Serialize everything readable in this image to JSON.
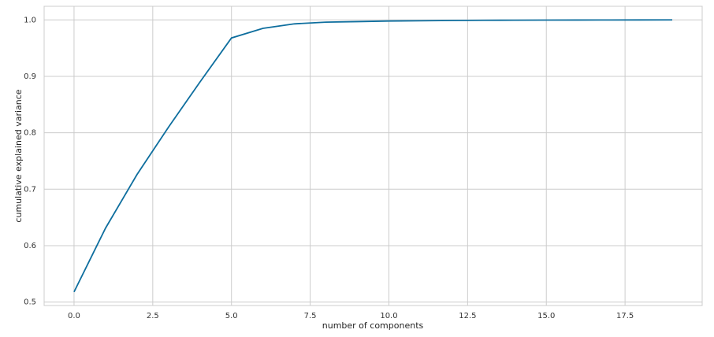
{
  "chart_data": {
    "type": "line",
    "xlabel": "number of components",
    "ylabel": "cumulative explained variance",
    "x": [
      0,
      1,
      2,
      3,
      4,
      5,
      6,
      7,
      8,
      9,
      10,
      11,
      12,
      13,
      14,
      15,
      16,
      17,
      18,
      19
    ],
    "values": [
      0.518,
      0.631,
      0.726,
      0.81,
      0.89,
      0.968,
      0.985,
      0.993,
      0.996,
      0.997,
      0.998,
      0.9985,
      0.999,
      0.9993,
      0.9995,
      0.9997,
      0.9998,
      0.9999,
      0.99995,
      1.0
    ],
    "color": "#0e6e9e",
    "xlim": [
      -0.95,
      19.95
    ],
    "ylim": [
      0.4939,
      1.0241
    ],
    "xticks": [
      {
        "value": 0,
        "label": "0.0"
      },
      2.5,
      {
        "value": 5,
        "label": "5.0"
      },
      7.5,
      {
        "value": 10,
        "label": "10.0"
      },
      12.5,
      {
        "value": 15,
        "label": "15.0"
      },
      17.5
    ],
    "yticks": [
      0.5,
      0.6,
      0.7,
      0.8,
      0.9,
      {
        "value": 1,
        "label": "1.0"
      }
    ],
    "grid": true
  }
}
